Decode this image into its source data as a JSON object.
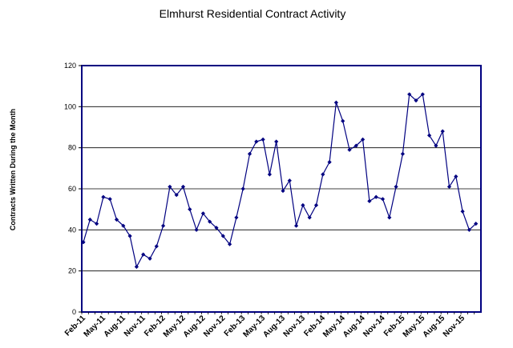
{
  "chart_data": {
    "type": "line",
    "title": "Elmhurst Residential Contract Activity",
    "xlabel": "",
    "ylabel": "Contracts Written During the Month",
    "ylim": [
      0,
      120
    ],
    "yticks": [
      0,
      20,
      40,
      60,
      80,
      100,
      120
    ],
    "grid": true,
    "legend": "none",
    "colors": {
      "line": "#000080",
      "marker": "#000080",
      "frame": "#000080",
      "grid": "#000000"
    },
    "x": [
      "Feb-11",
      "Mar-11",
      "Apr-11",
      "May-11",
      "Jun-11",
      "Jul-11",
      "Aug-11",
      "Sep-11",
      "Oct-11",
      "Nov-11",
      "Dec-11",
      "Jan-12",
      "Feb-12",
      "Mar-12",
      "Apr-12",
      "May-12",
      "Jun-12",
      "Jul-12",
      "Aug-12",
      "Sep-12",
      "Oct-12",
      "Nov-12",
      "Dec-12",
      "Jan-13",
      "Feb-13",
      "Mar-13",
      "Apr-13",
      "May-13",
      "Jun-13",
      "Jul-13",
      "Aug-13",
      "Sep-13",
      "Oct-13",
      "Nov-13",
      "Dec-13",
      "Jan-14",
      "Feb-14",
      "Mar-14",
      "Apr-14",
      "May-14",
      "Jun-14",
      "Jul-14",
      "Aug-14",
      "Sep-14",
      "Oct-14",
      "Nov-14",
      "Dec-14",
      "Jan-15",
      "Feb-15",
      "Mar-15",
      "Apr-15",
      "May-15",
      "Jun-15",
      "Jul-15",
      "Aug-15",
      "Sep-15",
      "Oct-15",
      "Nov-15",
      "Dec-15",
      "Jan-16"
    ],
    "xticks_shown": [
      "Feb-11",
      "May-11",
      "Aug-11",
      "Nov-11",
      "Feb-12",
      "May-12",
      "Aug-12",
      "Nov-12",
      "Feb-13",
      "May-13",
      "Aug-13",
      "Nov-13",
      "Feb-14",
      "May-14",
      "Aug-14",
      "Nov-14",
      "Feb-15",
      "May-15",
      "Aug-15",
      "Nov-15"
    ],
    "series": [
      {
        "values": [
          34,
          45,
          43,
          56,
          55,
          45,
          42,
          37,
          22,
          28,
          26,
          32,
          42,
          61,
          57,
          61,
          50,
          40,
          48,
          44,
          41,
          37,
          33,
          46,
          60,
          77,
          83,
          84,
          67,
          83,
          59,
          64,
          42,
          52,
          46,
          52,
          67,
          73,
          102,
          93,
          79,
          81,
          84,
          54,
          56,
          55,
          46,
          61,
          77,
          106,
          103,
          106,
          86,
          81,
          88,
          61,
          66,
          49,
          40,
          43
        ]
      }
    ]
  }
}
